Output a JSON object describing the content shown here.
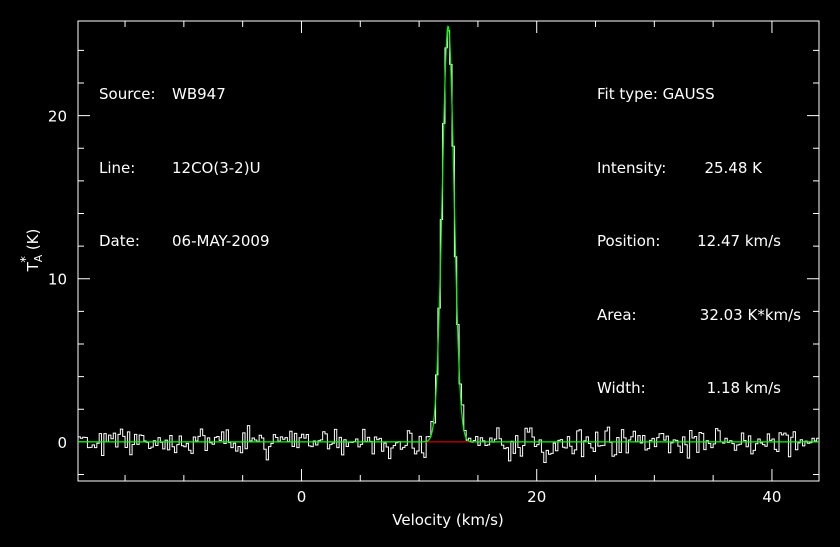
{
  "header_left": {
    "source_label": "Source:",
    "source_value": "WB947",
    "line_label": "Line:",
    "line_value": "12CO(3-2)U",
    "date_label": "Date:",
    "date_value": "06-MAY-2009"
  },
  "header_right": {
    "fit_type": "Fit type: GAUSS",
    "intensity_label": "Intensity:",
    "intensity_value": "25.48 K",
    "position_label": "Position:",
    "position_value": "12.47 km/s",
    "area_label": "Area:",
    "area_value": "32.03 K*km/s",
    "width_label": "Width:",
    "width_value": "1.18 km/s"
  },
  "colors": {
    "spectrum": "#ffffff",
    "fit": "#00ff00",
    "baseline": "#ff0000",
    "background": "#000000",
    "axes": "#ffffff"
  },
  "chart_data": {
    "type": "line",
    "xlabel": "Velocity (km/s)",
    "ylabel": "T*A (K)",
    "xlim": [
      -19,
      44
    ],
    "ylim": [
      -2.4,
      25.8
    ],
    "xticks": [
      0,
      20,
      40
    ],
    "xtick_labels": [
      "0",
      "20",
      "40"
    ],
    "yticks": [
      0,
      10,
      20
    ],
    "ytick_labels": [
      "0",
      "10",
      "20"
    ],
    "grid": false,
    "gaussian_fit": {
      "amplitude": 25.48,
      "center": 12.47,
      "fwhm": 1.18
    },
    "series": [
      {
        "name": "spectrum",
        "style": "histogram",
        "x_start": -19,
        "x_step": 0.2,
        "noise_rms": 0.45,
        "peak_channel_value": 25.2
      },
      {
        "name": "fit",
        "style": "line",
        "model": "gaussian"
      },
      {
        "name": "baseline",
        "style": "line",
        "x_range": [
          10.5,
          14.5
        ],
        "value": 0
      }
    ]
  }
}
